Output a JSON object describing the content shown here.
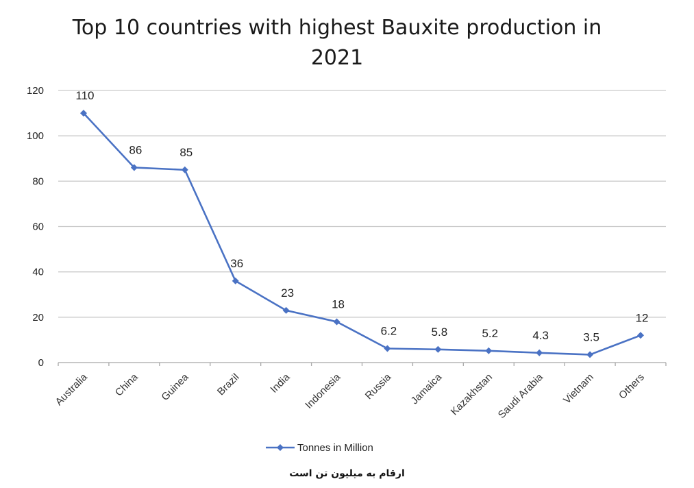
{
  "chart_data": {
    "type": "line",
    "title_lines": [
      "Top 10 countries with highest Bauxite production in",
      "2021"
    ],
    "xlabel": "",
    "ylabel": "",
    "categories": [
      "Australia",
      "China",
      "Guinea",
      "Brazil",
      "India",
      "Indonesia",
      "Russia",
      "Jamaica",
      "Kazakhstan",
      "Saudi Arabia",
      "Vietnam",
      "Others"
    ],
    "series": [
      {
        "name": "Tonnes in Million",
        "values": [
          110,
          86,
          85,
          36,
          23,
          18,
          6.2,
          5.8,
          5.2,
          4.3,
          3.5,
          12
        ],
        "labels": [
          "110",
          "86",
          "85",
          "36",
          "23",
          "18",
          "6.2",
          "5.8",
          "5.2",
          "4.3",
          "3.5",
          "12"
        ],
        "color": "#4a72c4",
        "marker": "diamond"
      }
    ],
    "ylim": [
      0,
      120
    ],
    "yticks": [
      "0",
      "20",
      "40",
      "60",
      "80",
      "100",
      "120"
    ],
    "grid": true,
    "legend": "bottom"
  },
  "footnote": "ارقام به میلیون تن است"
}
